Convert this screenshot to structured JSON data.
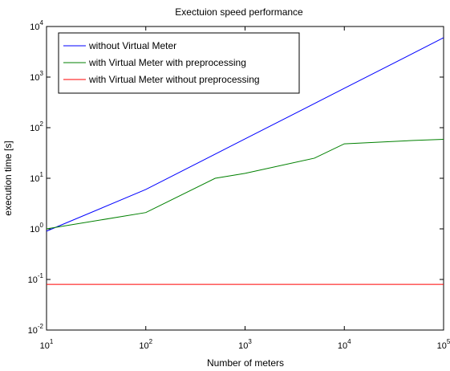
{
  "chart_data": {
    "type": "line",
    "title": "Exectuion speed performance",
    "xlabel": "Number of meters",
    "ylabel": "execution time  [s]",
    "x_scale": "log",
    "y_scale": "log",
    "xlim": [
      10,
      100000
    ],
    "ylim": [
      0.01,
      10000
    ],
    "grid": false,
    "legend_position": "top-left",
    "x_ticks": [
      {
        "value": 10,
        "base": "10",
        "exp": "1"
      },
      {
        "value": 100,
        "base": "10",
        "exp": "2"
      },
      {
        "value": 1000,
        "base": "10",
        "exp": "3"
      },
      {
        "value": 10000,
        "base": "10",
        "exp": "4"
      },
      {
        "value": 100000,
        "base": "10",
        "exp": "5"
      }
    ],
    "y_ticks": [
      {
        "value": 0.01,
        "base": "10",
        "exp": "-2"
      },
      {
        "value": 0.1,
        "base": "10",
        "exp": "-1"
      },
      {
        "value": 1,
        "base": "10",
        "exp": "0"
      },
      {
        "value": 10,
        "base": "10",
        "exp": "1"
      },
      {
        "value": 100,
        "base": "10",
        "exp": "2"
      },
      {
        "value": 1000,
        "base": "10",
        "exp": "3"
      },
      {
        "value": 10000,
        "base": "10",
        "exp": "4"
      }
    ],
    "series": [
      {
        "name": "without Virtual Meter",
        "color": "#0000ff",
        "x": [
          10,
          100,
          1000,
          10000,
          100000
        ],
        "y": [
          0.9,
          6,
          60,
          600,
          6000
        ]
      },
      {
        "name": "with Virtual Meter with preprocessing",
        "color": "#008000",
        "x": [
          10,
          100,
          500,
          1000,
          5000,
          10000,
          50000,
          100000
        ],
        "y": [
          1.0,
          2.1,
          10,
          12.5,
          25,
          48,
          56,
          59
        ]
      },
      {
        "name": "with Virtual Meter without preprocessing",
        "color": "#ff0000",
        "x": [
          10,
          100000
        ],
        "y": [
          0.08,
          0.08
        ]
      }
    ]
  }
}
